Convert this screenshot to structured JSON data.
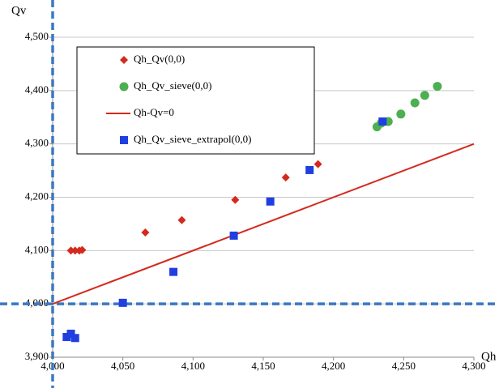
{
  "chart_data": {
    "type": "scatter",
    "x_label": "Qh",
    "y_label": "Qv",
    "xlim": [
      4000,
      4300
    ],
    "xticks": [
      {
        "value": 4000,
        "label": "4,000"
      },
      {
        "value": 4050,
        "label": "4,050"
      },
      {
        "value": 4100,
        "label": "4,100"
      },
      {
        "value": 4150,
        "label": "4,150"
      },
      {
        "value": 4200,
        "label": "4,200"
      },
      {
        "value": 4250,
        "label": "4,250"
      },
      {
        "value": 4300,
        "label": "4,300"
      }
    ],
    "ylim": [
      3900,
      4500
    ],
    "yticks": [
      {
        "value": 3900,
        "label": "3,900"
      },
      {
        "value": 4000,
        "label": "4,000"
      },
      {
        "value": 4100,
        "label": "4,100"
      },
      {
        "value": 4200,
        "label": "4,200"
      },
      {
        "value": 4300,
        "label": "4,300"
      },
      {
        "value": 4400,
        "label": "4,400"
      },
      {
        "value": 4500,
        "label": "4,500"
      }
    ],
    "grid": true,
    "reference_lines": {
      "x": 4000,
      "y": 4000,
      "color": "#3a78c2"
    },
    "series": [
      {
        "name": "Qh_Qv(0,0)",
        "type": "scatter",
        "marker": "diamond",
        "color": "#d42a1e",
        "x": [
          4013,
          4016,
          4019,
          4021,
          4066,
          4092,
          4130,
          4166,
          4189
        ],
        "y": [
          4100,
          4100,
          4100,
          4101,
          4134,
          4157,
          4195,
          4237,
          4262
        ]
      },
      {
        "name": "Qh_Qv_sieve(0,0)",
        "type": "scatter",
        "marker": "circle",
        "color": "#4caf50",
        "x": [
          4231,
          4234,
          4239,
          4248,
          4258,
          4265,
          4274
        ],
        "y": [
          4332,
          4339,
          4342,
          4356,
          4377,
          4391,
          4408
        ]
      },
      {
        "name": "Qh-Qv=0",
        "type": "line",
        "color": "#d42a1e",
        "x": [
          4000,
          4300
        ],
        "y": [
          4000,
          4300
        ]
      },
      {
        "name": "Qh_Qv_sieve_extrapol(0,0)",
        "type": "scatter",
        "marker": "square",
        "color": "#1f3fe0",
        "x": [
          4010,
          4013,
          4016,
          4050,
          4086,
          4129,
          4155,
          4183,
          4235
        ],
        "y": [
          3938,
          3944,
          3936,
          4002,
          4060,
          4128,
          4192,
          4251,
          4342
        ]
      }
    ]
  }
}
